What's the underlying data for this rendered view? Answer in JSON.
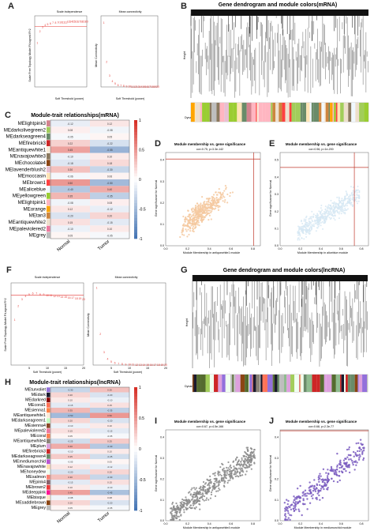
{
  "panels": {
    "A": {
      "letter": "A",
      "left_title": "Scale independence",
      "right_title": "Mean connectivity",
      "left_ylabel": "Scale Free Topology Model Fit,signed R^2",
      "right_ylabel": "Mean Connectivity",
      "xlabel": "Soft Threshold (power)"
    },
    "B": {
      "letter": "B",
      "title": "Gene dendrogram and module colors(mRNA)",
      "ylabel": "Height",
      "colorbar_label": "Dynamic Tree Cut"
    },
    "C": {
      "letter": "C",
      "title": "Module-trait relationships(mRNA)",
      "modules": [
        "MElightpink3",
        "MEdarkolivegreen2",
        "MEdarkseagreen4",
        "MEfirebrick3",
        "MEantiquewhite1",
        "MEnavajowhite3",
        "MEchocolate4",
        "MElavenderblush2",
        "MEmoccasin",
        "MEbrown1",
        "MEaliceblue",
        "MEyellowgreen",
        "MElightpink1",
        "MEorange",
        "MEtan3",
        "MEantiquewhite2",
        "MEpaleviolered2",
        "MEgrey"
      ],
      "module_colors": [
        "#d4838f",
        "#a2cd5a",
        "#698b69",
        "#cd2626",
        "#faebd7",
        "#8b795e",
        "#8b4513",
        "#e8c0d2",
        "#ffe4b5",
        "#ff4040",
        "#f0f8ff",
        "#9acd32",
        "#ffb6c1",
        "#ffa500",
        "#cd853f",
        "#eedfcc",
        "#ee799f",
        "#bebebe"
      ],
      "traits": [
        "Normal",
        "Tumor"
      ],
      "normal": [
        -0.12,
        0.08,
        -0.05,
        0.22,
        0.45,
        -0.1,
        -0.18,
        0.3,
        -0.06,
        0.5,
        -0.4,
        0.35,
        -0.08,
        0.12,
        -0.2,
        0.15,
        -0.1,
        0.05
      ],
      "tumor": [
        0.12,
        -0.08,
        0.05,
        -0.22,
        -0.55,
        0.1,
        0.18,
        -0.3,
        0.06,
        -0.5,
        0.4,
        -0.35,
        0.08,
        -0.12,
        0.2,
        -0.15,
        0.1,
        -0.05
      ],
      "legend_ticks": [
        "1",
        "0.5",
        "0",
        "-0.5",
        "-1"
      ]
    },
    "D": {
      "letter": "D",
      "title": "Module membership vs. gene significance",
      "subtitle": "cor=0.75, p=3.3e-142",
      "xlabel": "Module Membership in antiquewhite1 module",
      "ylabel": "Gene significance for Normal",
      "xticks": [
        "0.0",
        "0.2",
        "0.4",
        "0.6",
        "0.8"
      ],
      "yticks": [
        "0.0",
        "0.1",
        "0.2",
        "0.3",
        "0.4"
      ],
      "color": "#f5c9a0"
    },
    "E": {
      "letter": "E",
      "title": "Module membership vs. gene significance",
      "subtitle": "cor=0.56, p=1e-200",
      "xlabel": "Module Membership in aliceblue module",
      "ylabel": "Gene significance for Normal",
      "xticks": [
        "0.0",
        "0.2",
        "0.4",
        "0.6",
        "0.8"
      ],
      "yticks": [
        "0.0",
        "0.1",
        "0.2",
        "0.3",
        "0.4",
        "0.5"
      ],
      "color": "#d6e8f3"
    },
    "F": {
      "letter": "F",
      "left_title": "Scale independence",
      "right_title": "Mean connectivity",
      "left_ylabel": "Scale Free Topology Model Fit,signed R^2",
      "right_ylabel": "Mean Connectivity",
      "xlabel": "Soft Threshold (power)",
      "left_xticks": [
        "5",
        "10",
        "15",
        "20"
      ],
      "right_xticks": [
        "5",
        "10",
        "15",
        "20"
      ]
    },
    "G": {
      "letter": "G",
      "title": "Gene dendrogram and module colors(lncRNA)",
      "ylabel": "Height",
      "colorbar_label": "Dynamic Tree Cut"
    },
    "H": {
      "letter": "H",
      "title": "Module-trait relationships(lncRNA)",
      "modules": [
        "MEturvoliet",
        "MEdark",
        "MEdarkred",
        "MEcoral1",
        "MEsienna1",
        "MEantiquewhite1",
        "MEdarkseagreen1",
        "MEsienna4",
        "MEpaleviolered2",
        "MEcoral",
        "MEantiquewhite4",
        "MEplum",
        "MEfirebrick3",
        "MEdarkseagreen4",
        "MEmediumorchid",
        "MEnavajowhite",
        "MEhoneydew",
        "MEsalmon",
        "MEpink4",
        "MEbrown2",
        "MEdeeppink",
        "MEbisque",
        "MEsaddlebrown",
        "MEgrey"
      ],
      "module_colors": [
        "#9370db",
        "#1a1a2e",
        "#8b0000",
        "#ff7256",
        "#ff8247",
        "#faebd7",
        "#c1ffc1",
        "#8b4726",
        "#ee799f",
        "#ff7f50",
        "#8b8378",
        "#dda0dd",
        "#cd2626",
        "#698b69",
        "#ba55d3",
        "#ffdead",
        "#f0fff0",
        "#fa8072",
        "#8b636c",
        "#ee3b3b",
        "#ff1493",
        "#ffe4c4",
        "#8b4513",
        "#bebebe"
      ],
      "traits": [
        "Normal",
        "Tumor"
      ],
      "normal": [
        -0.3,
        0.2,
        0.1,
        -0.15,
        0.35,
        -0.5,
        0.2,
        -0.1,
        0.15,
        0.05,
        -0.25,
        0.4,
        -0.1,
        0.25,
        -0.05,
        0.12,
        -0.2,
        0.3,
        -0.15,
        0.1,
        0.45,
        -0.08,
        0.2,
        0.05
      ],
      "tumor": [
        0.3,
        -0.2,
        -0.1,
        0.15,
        -0.35,
        0.5,
        -0.2,
        0.1,
        -0.15,
        -0.05,
        0.25,
        -0.4,
        0.1,
        -0.25,
        0.05,
        -0.12,
        0.2,
        -0.3,
        0.15,
        -0.1,
        -0.45,
        0.08,
        -0.2,
        -0.05
      ],
      "legend_ticks": [
        "1",
        "0.5",
        "0",
        "-0.5",
        "-1"
      ]
    },
    "I": {
      "letter": "I",
      "title": "Module membership vs. gene significance",
      "subtitle": "cor=0.67, p=4.5e-166",
      "xlabel": "Module Membership in antiquewhite4 module",
      "ylabel": "Gene significance for Normal",
      "xticks": [
        "0.0",
        "0.2",
        "0.4",
        "0.6",
        "0.8"
      ],
      "yticks": [
        "0.0",
        "0.1",
        "0.2",
        "0.3",
        "0.4"
      ],
      "color": "#8a8a8a"
    },
    "J": {
      "letter": "J",
      "title": "Module membership vs. gene significance",
      "subtitle": "cor=0.68, p=2.3e-77",
      "xlabel": "Module Membership in mediumorchid module",
      "ylabel": "Gene significance for Normal",
      "xticks": [
        "0.0",
        "0.2",
        "0.4",
        "0.6",
        "0.8"
      ],
      "yticks": [
        "0.0",
        "0.1",
        "0.2",
        "0.3",
        "0.4"
      ],
      "color": "#7a5cc0"
    }
  },
  "chart_data": [
    {
      "type": "scatter",
      "panel": "A-left",
      "title": "Scale independence",
      "xlabel": "Soft Threshold (power)",
      "x": [
        1,
        2,
        3,
        4,
        5,
        6,
        7,
        8,
        9,
        10,
        11,
        12,
        13,
        14,
        15,
        16,
        17,
        18,
        19,
        20
      ],
      "y": [
        0.62,
        0.78,
        0.84,
        0.87,
        0.88,
        0.89,
        0.9,
        0.9,
        0.91,
        0.91,
        0.91,
        0.91,
        0.92,
        0.92,
        0.92,
        0.92,
        0.92,
        0.92,
        0.92,
        0.92
      ],
      "ylim": [
        0,
        1
      ],
      "xlim": [
        0,
        20
      ],
      "threshold": 0.85
    },
    {
      "type": "scatter",
      "panel": "A-right",
      "title": "Mean connectivity",
      "xlabel": "Soft Threshold (power)",
      "x": [
        1,
        2,
        3,
        4,
        5,
        6,
        7,
        8,
        9,
        10,
        11,
        12,
        13,
        14,
        15,
        16,
        17,
        18,
        19,
        20
      ],
      "y": [
        900,
        350,
        160,
        80,
        45,
        27,
        18,
        12,
        9,
        7,
        5,
        4,
        3.5,
        3,
        2.5,
        2.2,
        2,
        1.8,
        1.6,
        1.5
      ],
      "ylim": [
        0,
        1000
      ],
      "xlim": [
        0,
        20
      ]
    },
    {
      "type": "heatmap",
      "panel": "C",
      "title": "Module-trait relationships(mRNA)",
      "traits": [
        "Normal",
        "Tumor"
      ]
    },
    {
      "type": "scatter",
      "panel": "D",
      "title": "Module membership vs. gene significance",
      "cor": 0.75,
      "xlim": [
        0,
        0.9
      ],
      "ylim": [
        0,
        0.45
      ]
    },
    {
      "type": "scatter",
      "panel": "E",
      "title": "Module membership vs. gene significance",
      "cor": 0.56,
      "xlim": [
        0,
        0.9
      ],
      "ylim": [
        0,
        0.55
      ]
    },
    {
      "type": "scatter",
      "panel": "F-left",
      "title": "Scale independence",
      "xlabel": "Soft Threshold (power)",
      "x": [
        1,
        2,
        3,
        4,
        5,
        6,
        7,
        8,
        9,
        10,
        11,
        12,
        13,
        14,
        15,
        16,
        17,
        18,
        19,
        20
      ],
      "y": [
        0.55,
        0.72,
        0.8,
        0.84,
        0.86,
        0.87,
        0.87,
        0.86,
        0.86,
        0.85,
        0.85,
        0.84,
        0.84,
        0.83,
        0.83,
        0.82,
        0.82,
        0.81,
        0.81,
        0.8
      ],
      "ylim": [
        0,
        1
      ],
      "xlim": [
        0,
        20
      ],
      "threshold": 0.85
    },
    {
      "type": "scatter",
      "panel": "F-right",
      "title": "Mean connectivity",
      "xlabel": "Soft Threshold (power)",
      "x": [
        1,
        2,
        3,
        4,
        5,
        6,
        7,
        8,
        9,
        10,
        11,
        12,
        13,
        14,
        15,
        16,
        17,
        18,
        19,
        20
      ],
      "y": [
        1500,
        600,
        250,
        120,
        65,
        40,
        26,
        18,
        13,
        10,
        8,
        6,
        5,
        4,
        3.5,
        3,
        2.6,
        2.3,
        2,
        1.8
      ],
      "ylim": [
        0,
        1600
      ],
      "xlim": [
        0,
        20
      ]
    },
    {
      "type": "heatmap",
      "panel": "H",
      "title": "Module-trait relationships(lncRNA)",
      "traits": [
        "Normal",
        "Tumor"
      ]
    },
    {
      "type": "scatter",
      "panel": "I",
      "title": "Module membership vs. gene significance",
      "cor": 0.67,
      "xlim": [
        0,
        0.9
      ],
      "ylim": [
        0,
        0.45
      ]
    },
    {
      "type": "scatter",
      "panel": "J",
      "title": "Module membership vs. gene significance",
      "cor": 0.68,
      "xlim": [
        0,
        0.9
      ],
      "ylim": [
        0,
        0.45
      ]
    }
  ]
}
